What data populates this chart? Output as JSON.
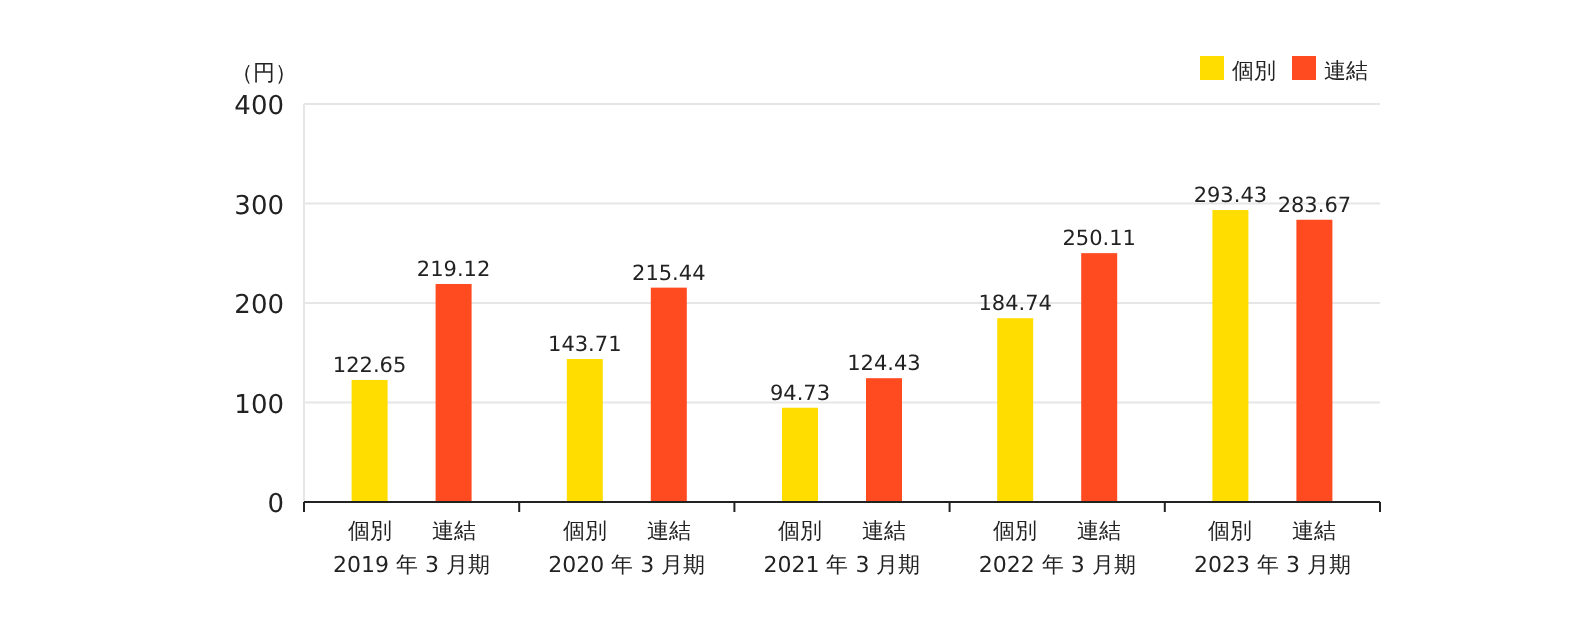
{
  "chart_data": {
    "type": "bar",
    "ylabel": "（円）",
    "categories": [
      "2019 年 3 月期",
      "2020 年 3 月期",
      "2021 年 3 月期",
      "2022 年 3 月期",
      "2023 年 3 月期"
    ],
    "series": [
      {
        "name": "個別",
        "color": "#ffdd00",
        "values": [
          122.65,
          143.71,
          94.73,
          184.74,
          293.43
        ]
      },
      {
        "name": "連結",
        "color": "#ff4b1f",
        "values": [
          219.12,
          215.44,
          124.43,
          250.11,
          283.67
        ]
      }
    ],
    "ylim": [
      0,
      400
    ],
    "yticks": [
      0,
      100,
      200,
      300,
      400
    ],
    "grid": "y",
    "legend": "top right",
    "data_labels": true
  }
}
